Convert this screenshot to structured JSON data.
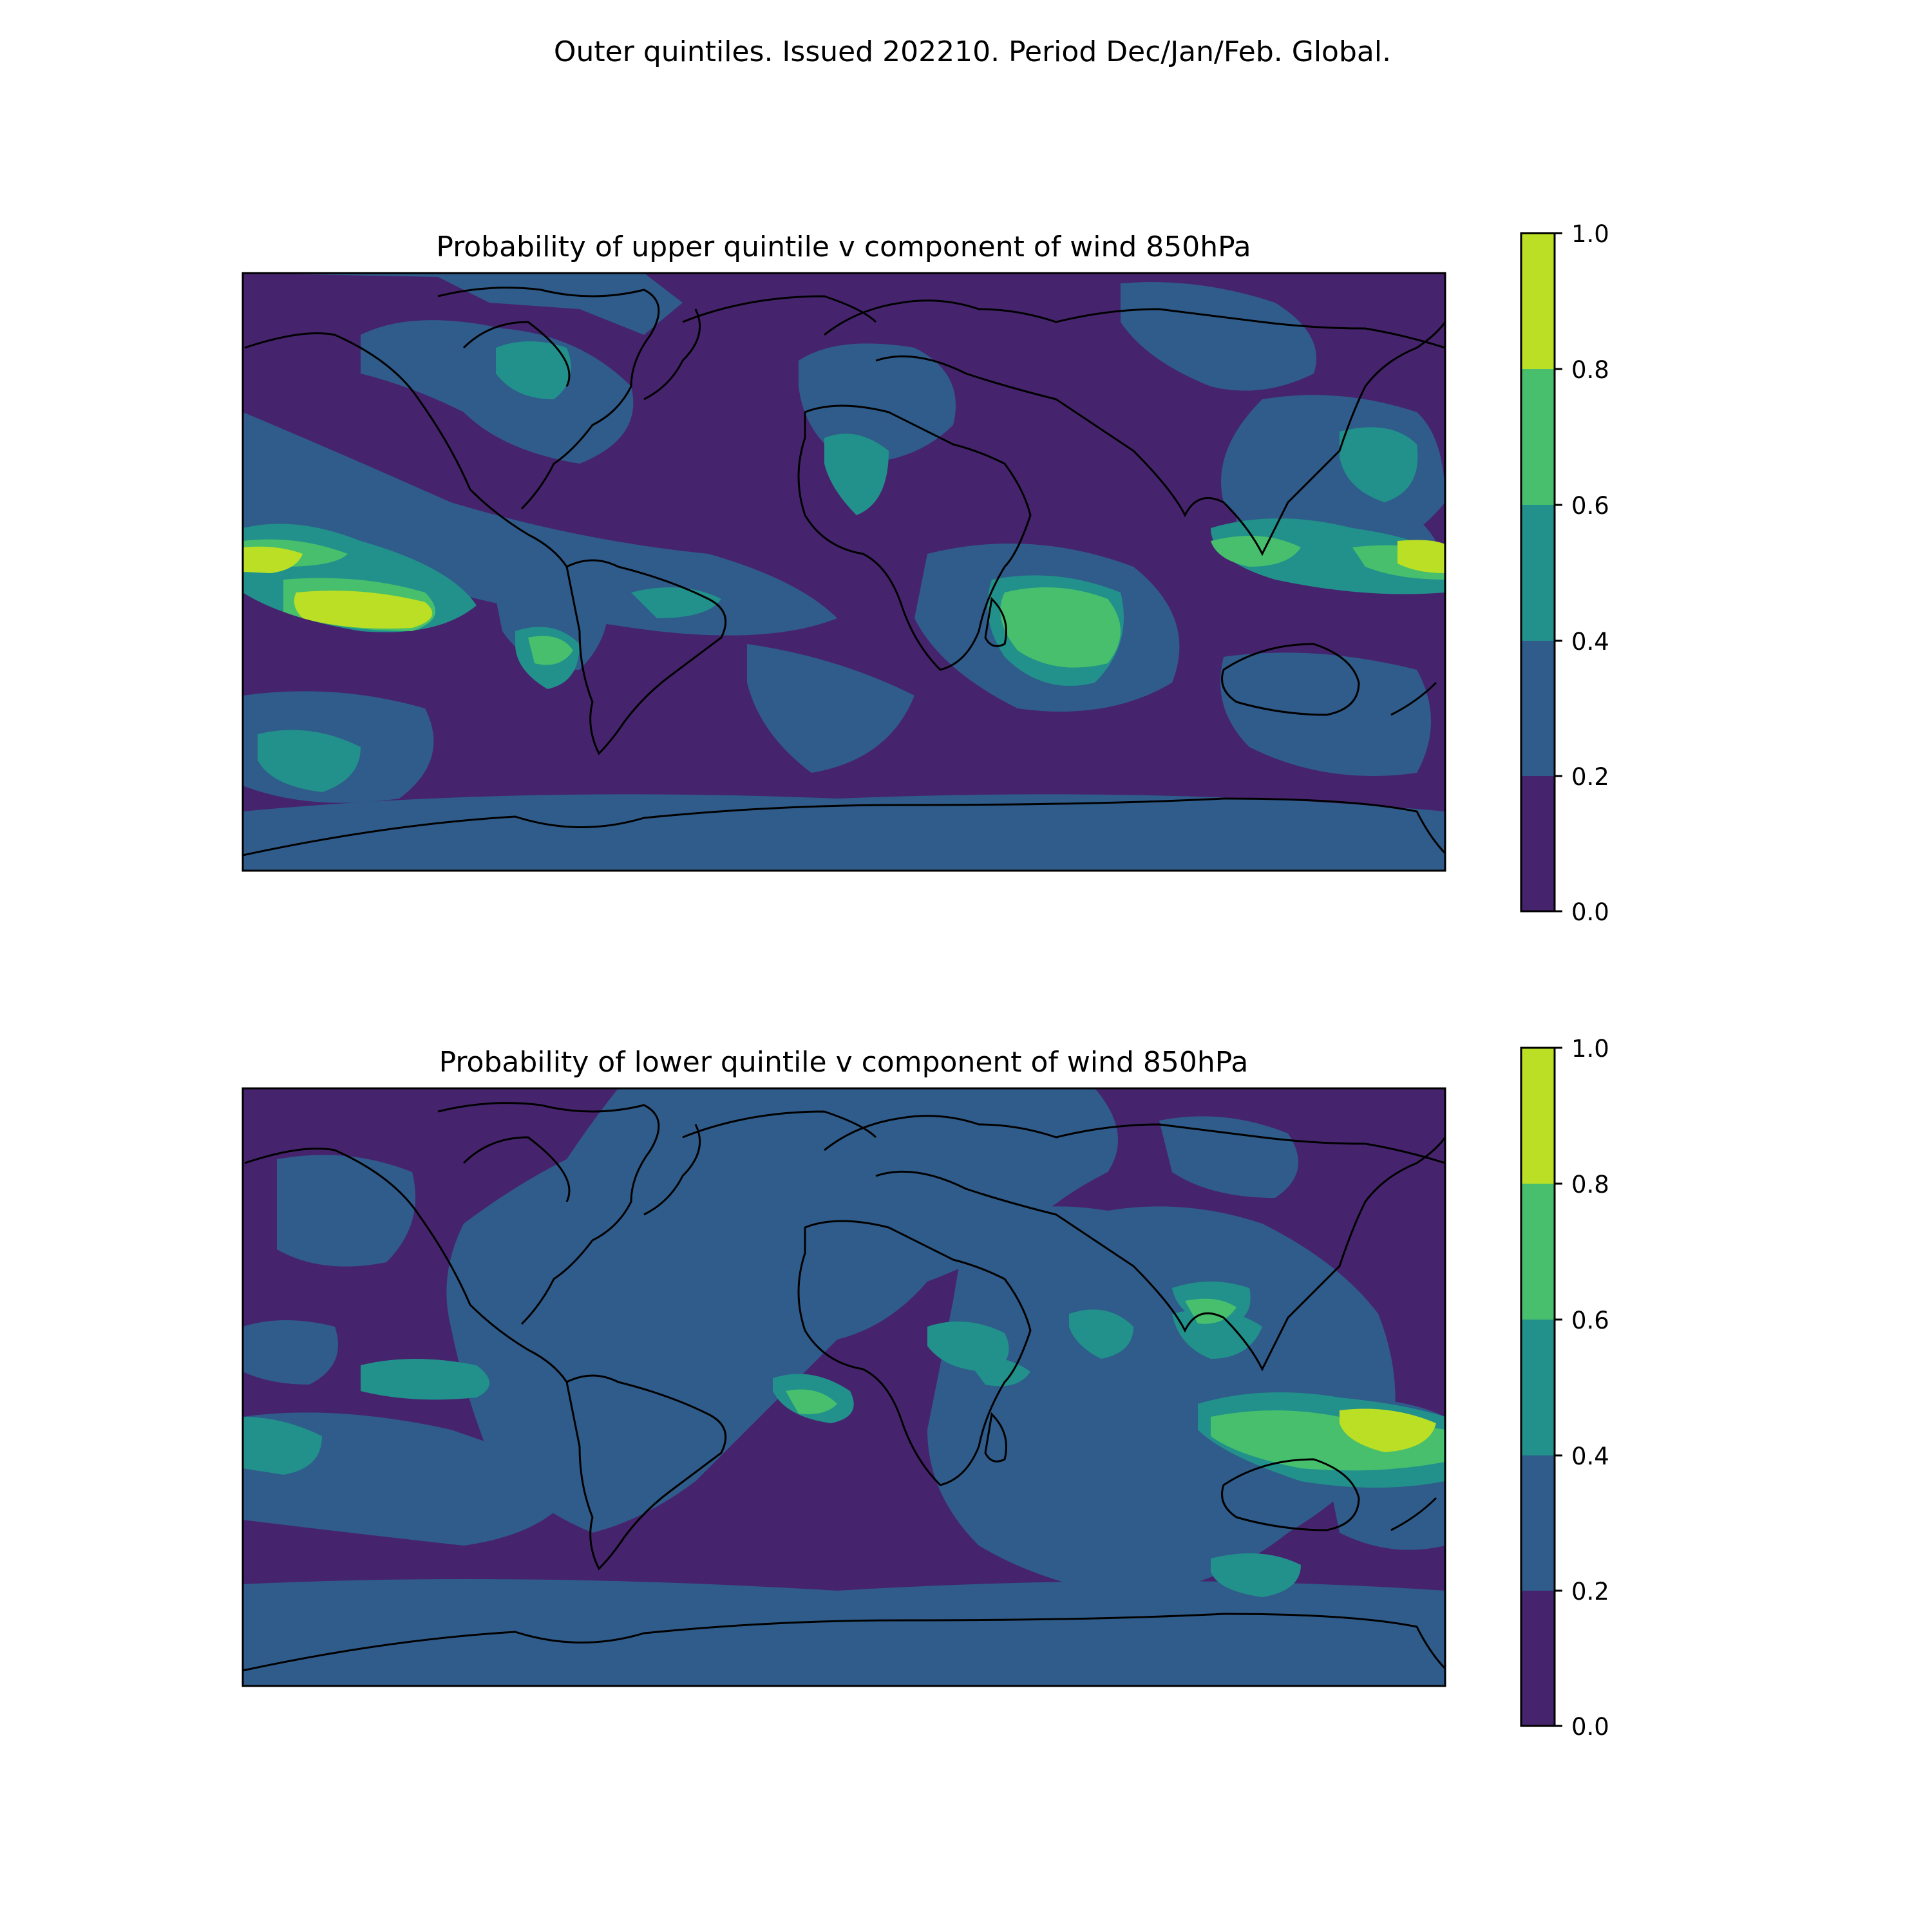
{
  "figure": {
    "suptitle": "Outer quintiles. Issued 202210. Period Dec/Jan/Feb. Global."
  },
  "palette": {
    "levels": [
      0.0,
      0.2,
      0.4,
      0.6,
      0.8,
      1.0
    ],
    "colors": [
      "#46246d",
      "#2f5c8a",
      "#22918b",
      "#48bf6c",
      "#bbdf25"
    ],
    "coastline": "#000000"
  },
  "panels": [
    {
      "title": "Probability of upper quintile v component of wind 850hPa",
      "colorbar_ticks": [
        "0.0",
        "0.2",
        "0.4",
        "0.6",
        "0.8",
        "1.0"
      ]
    },
    {
      "title": "Probability of lower quintile v component of wind 850hPa",
      "colorbar_ticks": [
        "0.0",
        "0.2",
        "0.4",
        "0.6",
        "0.8",
        "1.0"
      ]
    }
  ],
  "chart_data": [
    {
      "type": "heatmap",
      "title": "Probability of upper quintile v component of wind 850hPa",
      "projection": "global lat/lon",
      "levels": [
        0.0,
        0.2,
        0.4,
        0.6,
        0.8,
        1.0
      ],
      "colorbar_range": [
        0.0,
        1.0
      ],
      "features": [
        {
          "region": "central/east tropical Pacific",
          "range": [
            0.8,
            1.0
          ]
        },
        {
          "region": "western Pacific near Philippines",
          "range": [
            0.8,
            1.0
          ]
        },
        {
          "region": "southwest Indian Ocean east of Madagascar",
          "range": [
            0.6,
            0.8
          ]
        },
        {
          "region": "Hudson Bay",
          "range": [
            0.4,
            0.6
          ]
        },
        {
          "region": "South Pacific west of Chile",
          "range": [
            0.4,
            0.6
          ]
        },
        {
          "region": "North Africa / Sahara",
          "range": [
            0.4,
            0.6
          ]
        },
        {
          "region": "northwest Pacific east of Japan",
          "range": [
            0.4,
            0.6
          ]
        },
        {
          "region": "far southern Pacific",
          "range": [
            0.4,
            0.6
          ]
        }
      ]
    },
    {
      "type": "heatmap",
      "title": "Probability of lower quintile v component of wind 850hPa",
      "projection": "global lat/lon",
      "levels": [
        0.0,
        0.2,
        0.4,
        0.6,
        0.8,
        1.0
      ],
      "colorbar_range": [
        0.0,
        1.0
      ],
      "features": [
        {
          "region": "maritime continent / north of Australia",
          "range": [
            0.8,
            1.0
          ]
        },
        {
          "region": "eastern tropical Atlantic / Gulf of Guinea",
          "range": [
            0.6,
            0.8
          ]
        },
        {
          "region": "East Asia coast / South China",
          "range": [
            0.6,
            0.8
          ]
        },
        {
          "region": "eastern tropical Pacific",
          "range": [
            0.4,
            0.6
          ]
        },
        {
          "region": "Arabian Sea / Horn of Africa",
          "range": [
            0.4,
            0.6
          ]
        },
        {
          "region": "Bay of Bengal",
          "range": [
            0.4,
            0.6
          ]
        },
        {
          "region": "southern Indian Ocean",
          "range": [
            0.4,
            0.6
          ]
        },
        {
          "region": "central Pacific (west)",
          "range": [
            0.4,
            0.6
          ]
        }
      ]
    }
  ]
}
